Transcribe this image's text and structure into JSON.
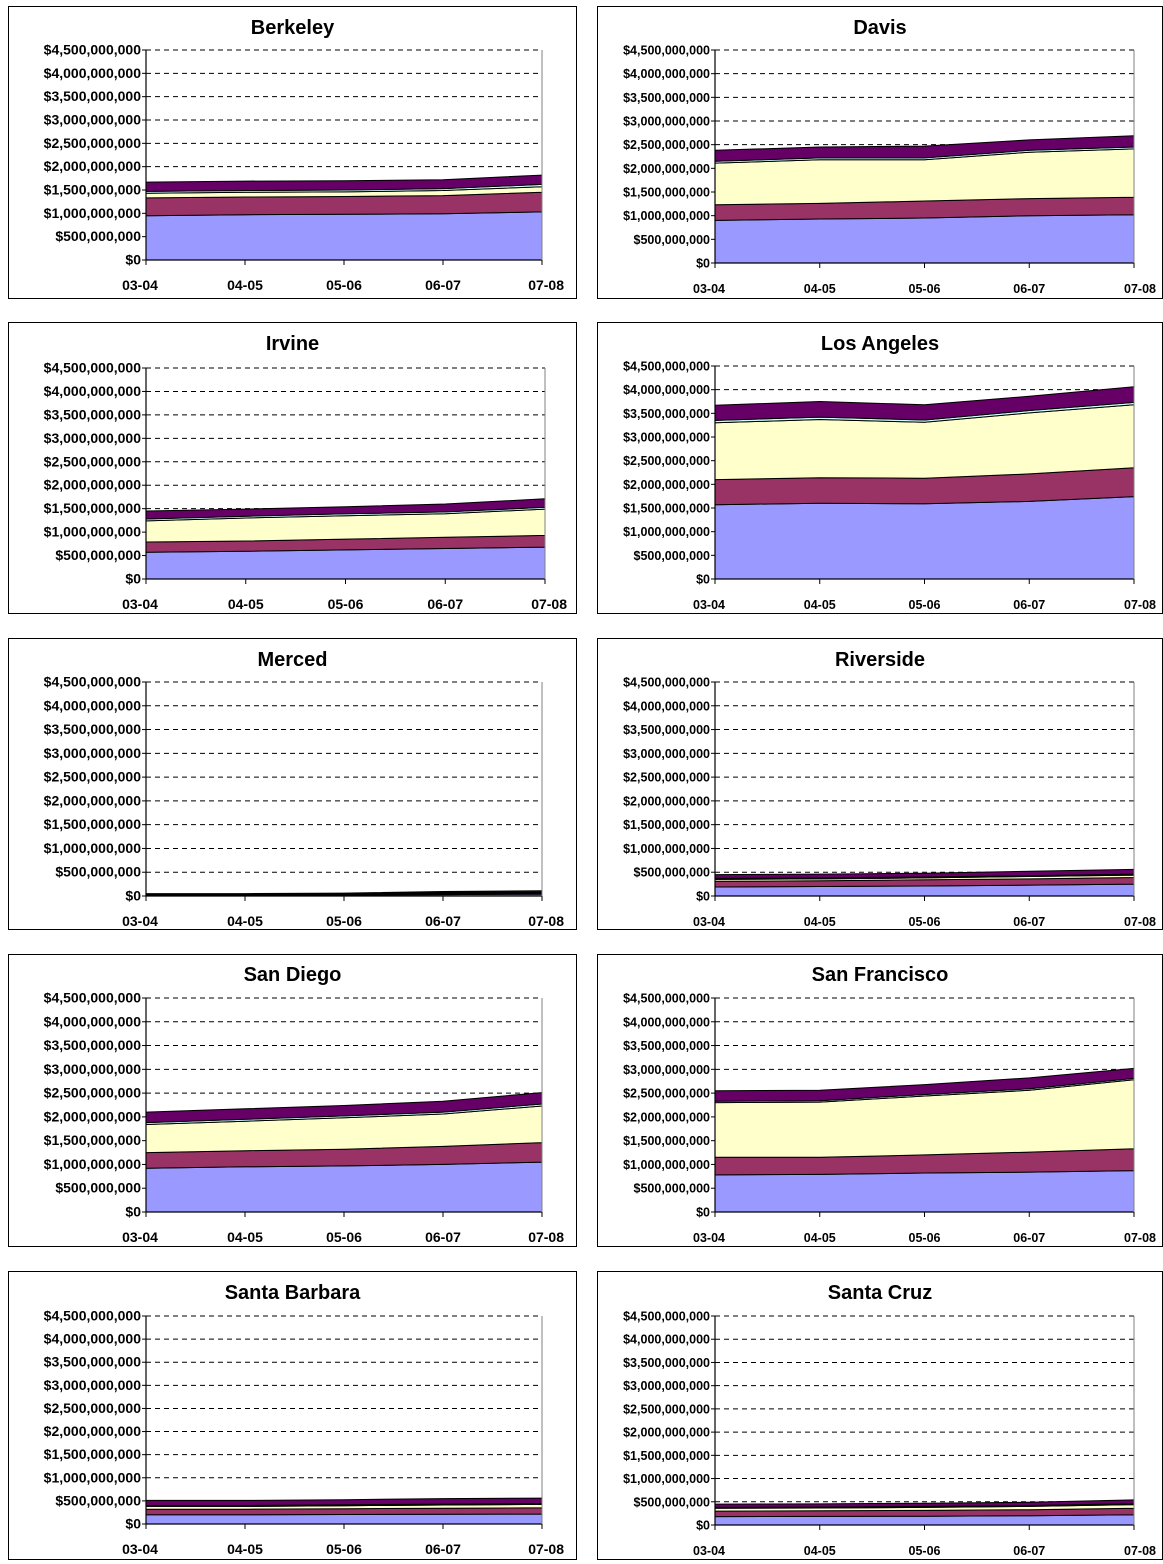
{
  "colors": {
    "series": [
      "#9999ff",
      "#993366",
      "#ffffcc",
      "#ccffff",
      "#660066"
    ],
    "outline": "#000000",
    "gridline": "#000000"
  },
  "chart_data": [
    {
      "type": "area",
      "stacked": true,
      "title": "Berkeley",
      "categories": [
        "03-04",
        "04-05",
        "05-06",
        "06-07",
        "07-08"
      ],
      "ylim": [
        0,
        4500000000
      ],
      "yticks": [
        "$0",
        "$500,000,000",
        "$1,000,000,000",
        "$1,500,000,000",
        "$2,000,000,000",
        "$2,500,000,000",
        "$3,000,000,000",
        "$3,500,000,000",
        "$4,000,000,000",
        "$4,500,000,000"
      ],
      "series": [
        {
          "values": [
            950000000,
            970000000,
            980000000,
            990000000,
            1030000000
          ]
        },
        {
          "values": [
            380000000,
            380000000,
            380000000,
            390000000,
            420000000
          ]
        },
        {
          "values": [
            100000000,
            100000000,
            100000000,
            110000000,
            120000000
          ]
        },
        {
          "values": [
            40000000,
            40000000,
            40000000,
            40000000,
            50000000
          ]
        },
        {
          "values": [
            200000000,
            200000000,
            200000000,
            190000000,
            200000000
          ]
        }
      ]
    },
    {
      "type": "area",
      "stacked": true,
      "title": "Davis",
      "categories": [
        "03-04",
        "04-05",
        "05-06",
        "06-07",
        "07-08"
      ],
      "ylim": [
        0,
        4500000000
      ],
      "yticks": [
        "$0",
        "$500,000,000",
        "$1,000,000,000",
        "$1,500,000,000",
        "$2,000,000,000",
        "$2,500,000,000",
        "$3,000,000,000",
        "$3,500,000,000",
        "$4,000,000,000",
        "$4,500,000,000"
      ],
      "series": [
        {
          "values": [
            900000000,
            930000000,
            950000000,
            1000000000,
            1020000000
          ]
        },
        {
          "values": [
            330000000,
            330000000,
            360000000,
            360000000,
            370000000
          ]
        },
        {
          "values": [
            880000000,
            920000000,
            870000000,
            980000000,
            1020000000
          ]
        },
        {
          "values": [
            40000000,
            40000000,
            40000000,
            40000000,
            40000000
          ]
        },
        {
          "values": [
            230000000,
            230000000,
            250000000,
            220000000,
            240000000
          ]
        }
      ]
    },
    {
      "type": "area",
      "stacked": true,
      "title": "Irvine",
      "categories": [
        "03-04",
        "04-05",
        "05-06",
        "06-07",
        "07-08"
      ],
      "ylim": [
        0,
        4500000000
      ],
      "yticks": [
        "$0",
        "$500,000,000",
        "$1,000,000,000",
        "$1,500,000,000",
        "$2,000,000,000",
        "$2,500,000,000",
        "$3,000,000,000",
        "$3,500,000,000",
        "$4,000,000,000",
        "$4,500,000,000"
      ],
      "series": [
        {
          "values": [
            570000000,
            590000000,
            620000000,
            650000000,
            680000000
          ]
        },
        {
          "values": [
            220000000,
            220000000,
            230000000,
            240000000,
            250000000
          ]
        },
        {
          "values": [
            450000000,
            490000000,
            500000000,
            500000000,
            560000000
          ]
        },
        {
          "values": [
            40000000,
            40000000,
            40000000,
            40000000,
            40000000
          ]
        },
        {
          "values": [
            170000000,
            150000000,
            150000000,
            170000000,
            180000000
          ]
        }
      ]
    },
    {
      "type": "area",
      "stacked": true,
      "title": "Los Angeles",
      "categories": [
        "03-04",
        "04-05",
        "05-06",
        "06-07",
        "07-08"
      ],
      "ylim": [
        0,
        4500000000
      ],
      "yticks": [
        "$0",
        "$500,000,000",
        "$1,000,000,000",
        "$1,500,000,000",
        "$2,000,000,000",
        "$2,500,000,000",
        "$3,000,000,000",
        "$3,500,000,000",
        "$4,000,000,000",
        "$4,500,000,000"
      ],
      "series": [
        {
          "values": [
            1570000000,
            1600000000,
            1590000000,
            1640000000,
            1740000000
          ]
        },
        {
          "values": [
            530000000,
            540000000,
            540000000,
            580000000,
            610000000
          ]
        },
        {
          "values": [
            1200000000,
            1230000000,
            1180000000,
            1290000000,
            1330000000
          ]
        },
        {
          "values": [
            50000000,
            50000000,
            50000000,
            50000000,
            50000000
          ]
        },
        {
          "values": [
            320000000,
            330000000,
            320000000,
            300000000,
            330000000
          ]
        }
      ]
    },
    {
      "type": "area",
      "stacked": true,
      "title": "Merced",
      "categories": [
        "03-04",
        "04-05",
        "05-06",
        "06-07",
        "07-08"
      ],
      "ylim": [
        0,
        4500000000
      ],
      "yticks": [
        "$0",
        "$500,000,000",
        "$1,000,000,000",
        "$1,500,000,000",
        "$2,000,000,000",
        "$2,500,000,000",
        "$3,000,000,000",
        "$3,500,000,000",
        "$4,000,000,000",
        "$4,500,000,000"
      ],
      "series": [
        {
          "values": [
            10000000,
            10000000,
            20000000,
            30000000,
            40000000
          ]
        },
        {
          "values": [
            10000000,
            10000000,
            10000000,
            20000000,
            20000000
          ]
        },
        {
          "values": [
            10000000,
            10000000,
            10000000,
            20000000,
            20000000
          ]
        },
        {
          "values": [
            5000000,
            5000000,
            5000000,
            5000000,
            5000000
          ]
        },
        {
          "values": [
            15000000,
            15000000,
            15000000,
            20000000,
            25000000
          ]
        }
      ]
    },
    {
      "type": "area",
      "stacked": true,
      "title": "Riverside",
      "categories": [
        "03-04",
        "04-05",
        "05-06",
        "06-07",
        "07-08"
      ],
      "ylim": [
        0,
        4500000000
      ],
      "yticks": [
        "$0",
        "$500,000,000",
        "$1,000,000,000",
        "$1,500,000,000",
        "$2,000,000,000",
        "$2,500,000,000",
        "$3,000,000,000",
        "$3,500,000,000",
        "$4,000,000,000",
        "$4,500,000,000"
      ],
      "series": [
        {
          "values": [
            190000000,
            200000000,
            210000000,
            230000000,
            250000000
          ]
        },
        {
          "values": [
            120000000,
            120000000,
            130000000,
            130000000,
            140000000
          ]
        },
        {
          "values": [
            40000000,
            40000000,
            40000000,
            50000000,
            50000000
          ]
        },
        {
          "values": [
            20000000,
            20000000,
            20000000,
            20000000,
            20000000
          ]
        },
        {
          "values": [
            80000000,
            80000000,
            80000000,
            90000000,
            100000000
          ]
        }
      ]
    },
    {
      "type": "area",
      "stacked": true,
      "title": "San Diego",
      "categories": [
        "03-04",
        "04-05",
        "05-06",
        "06-07",
        "07-08"
      ],
      "ylim": [
        0,
        4500000000
      ],
      "yticks": [
        "$0",
        "$500,000,000",
        "$1,000,000,000",
        "$1,500,000,000",
        "$2,000,000,000",
        "$2,500,000,000",
        "$3,000,000,000",
        "$3,500,000,000",
        "$4,000,000,000",
        "$4,500,000,000"
      ],
      "series": [
        {
          "values": [
            920000000,
            950000000,
            970000000,
            1000000000,
            1050000000
          ]
        },
        {
          "values": [
            330000000,
            340000000,
            350000000,
            380000000,
            410000000
          ]
        },
        {
          "values": [
            590000000,
            620000000,
            660000000,
            680000000,
            770000000
          ]
        },
        {
          "values": [
            40000000,
            40000000,
            40000000,
            40000000,
            40000000
          ]
        },
        {
          "values": [
            220000000,
            220000000,
            220000000,
            230000000,
            240000000
          ]
        }
      ]
    },
    {
      "type": "area",
      "stacked": true,
      "title": "San Francisco",
      "categories": [
        "03-04",
        "04-05",
        "05-06",
        "06-07",
        "07-08"
      ],
      "ylim": [
        0,
        4500000000
      ],
      "yticks": [
        "$0",
        "$500,000,000",
        "$1,000,000,000",
        "$1,500,000,000",
        "$2,000,000,000",
        "$2,500,000,000",
        "$3,000,000,000",
        "$3,500,000,000",
        "$4,000,000,000",
        "$4,500,000,000"
      ],
      "series": [
        {
          "values": [
            780000000,
            790000000,
            820000000,
            840000000,
            870000000
          ]
        },
        {
          "values": [
            370000000,
            360000000,
            380000000,
            420000000,
            460000000
          ]
        },
        {
          "values": [
            1150000000,
            1160000000,
            1240000000,
            1300000000,
            1450000000
          ]
        },
        {
          "values": [
            30000000,
            30000000,
            30000000,
            30000000,
            30000000
          ]
        },
        {
          "values": [
            220000000,
            220000000,
            210000000,
            230000000,
            210000000
          ]
        }
      ]
    },
    {
      "type": "area",
      "stacked": true,
      "title": "Santa Barbara",
      "categories": [
        "03-04",
        "04-05",
        "05-06",
        "06-07",
        "07-08"
      ],
      "ylim": [
        0,
        4500000000
      ],
      "yticks": [
        "$0",
        "$500,000,000",
        "$1,000,000,000",
        "$1,500,000,000",
        "$2,000,000,000",
        "$2,500,000,000",
        "$3,000,000,000",
        "$3,500,000,000",
        "$4,000,000,000",
        "$4,500,000,000"
      ],
      "series": [
        {
          "values": [
            200000000,
            200000000,
            205000000,
            210000000,
            215000000
          ]
        },
        {
          "values": [
            120000000,
            120000000,
            125000000,
            130000000,
            135000000
          ]
        },
        {
          "values": [
            60000000,
            60000000,
            65000000,
            70000000,
            75000000
          ]
        },
        {
          "values": [
            20000000,
            20000000,
            20000000,
            20000000,
            20000000
          ]
        },
        {
          "values": [
            110000000,
            110000000,
            110000000,
            120000000,
            115000000
          ]
        }
      ]
    },
    {
      "type": "area",
      "stacked": true,
      "title": "Santa Cruz",
      "categories": [
        "03-04",
        "04-05",
        "05-06",
        "06-07",
        "07-08"
      ],
      "ylim": [
        0,
        4500000000
      ],
      "yticks": [
        "$0",
        "$500,000,000",
        "$1,000,000,000",
        "$1,500,000,000",
        "$2,000,000,000",
        "$2,500,000,000",
        "$3,000,000,000",
        "$3,500,000,000",
        "$4,000,000,000",
        "$4,500,000,000"
      ],
      "series": [
        {
          "values": [
            180000000,
            185000000,
            190000000,
            200000000,
            220000000
          ]
        },
        {
          "values": [
            120000000,
            120000000,
            125000000,
            130000000,
            140000000
          ]
        },
        {
          "values": [
            60000000,
            60000000,
            65000000,
            70000000,
            80000000
          ]
        },
        {
          "values": [
            20000000,
            20000000,
            20000000,
            20000000,
            20000000
          ]
        },
        {
          "values": [
            70000000,
            70000000,
            70000000,
            70000000,
            80000000
          ]
        }
      ]
    }
  ]
}
